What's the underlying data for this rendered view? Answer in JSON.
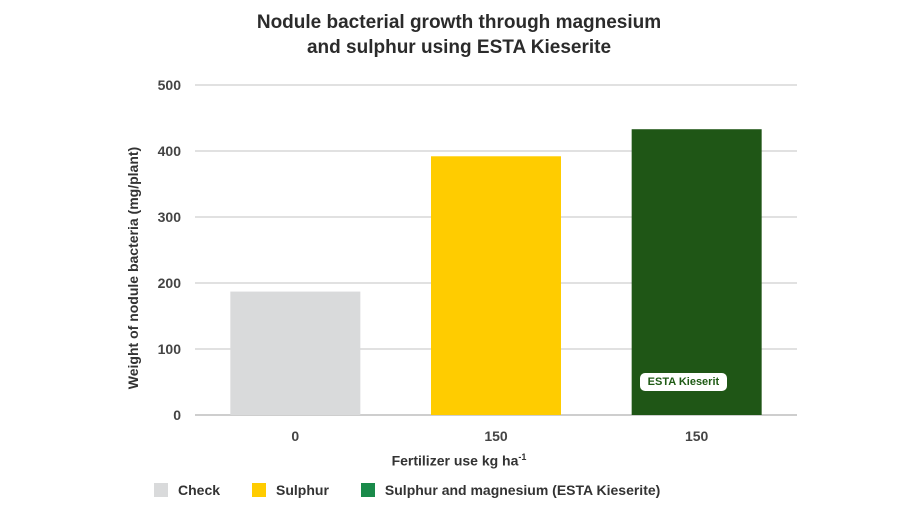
{
  "chart_data": {
    "type": "bar",
    "title_lines": [
      "Nodule bacterial growth through magnesium",
      "and sulphur using ESTA Kieserite"
    ],
    "xlabel": "Fertilizer use kg ha",
    "xlabel_superscript": "-1",
    "ylabel": "Weight of nodule bacteria (mg/plant)",
    "ylim": [
      0,
      500
    ],
    "yticks": [
      0,
      100,
      200,
      300,
      400,
      500
    ],
    "grid": true,
    "categories": [
      "0",
      "150",
      "150"
    ],
    "values": [
      187,
      392,
      433
    ],
    "colors": [
      "#d9dadb",
      "#ffcc00",
      "#1f5616"
    ],
    "bar_badge": {
      "bar_index": 2,
      "text": "ESTA Kieserit"
    },
    "legend": [
      {
        "label": "Check",
        "color": "#d9dadb"
      },
      {
        "label": "Sulphur",
        "color": "#ffcc00"
      },
      {
        "label": "Sulphur and magnesium (ESTA Kieserite)",
        "color": "#1a8a4a"
      }
    ]
  }
}
